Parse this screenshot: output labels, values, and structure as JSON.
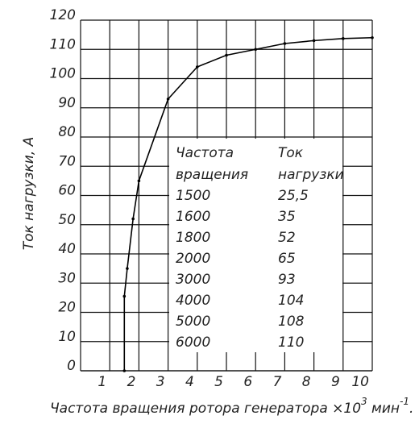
{
  "chart_data": {
    "type": "line",
    "ylabel": "Ток нагрузки, А",
    "xlabel": [
      "Частота вращения ротора генератора ×10",
      "3",
      " мин",
      "-1",
      "."
    ],
    "x": [
      1.5,
      1.5,
      1.6,
      1.8,
      2,
      3,
      4,
      5,
      6,
      7,
      8,
      9,
      10
    ],
    "series": [
      {
        "color": "#000000",
        "values": [
          0,
          25.5,
          35,
          52,
          65,
          93,
          104,
          108,
          110,
          112,
          113,
          113.7,
          114
        ]
      }
    ],
    "xlim": [
      0,
      10
    ],
    "xticks": [
      1,
      2,
      3,
      4,
      5,
      6,
      7,
      8,
      9,
      10
    ],
    "ylim": [
      0,
      120
    ],
    "yticks": [
      0,
      10,
      20,
      30,
      40,
      50,
      60,
      70,
      80,
      90,
      100,
      110,
      120
    ],
    "grid": true,
    "table": {
      "header": [
        [
          "Частота",
          "вращения"
        ],
        [
          "Ток",
          "нагрузки"
        ]
      ],
      "rows": [
        [
          "1500",
          "25,5"
        ],
        [
          "1600",
          "35"
        ],
        [
          "1800",
          "52"
        ],
        [
          "2000",
          "65"
        ],
        [
          "3000",
          "93"
        ],
        [
          "4000",
          "104"
        ],
        [
          "5000",
          "108"
        ],
        [
          "6000",
          "110"
        ]
      ]
    }
  }
}
